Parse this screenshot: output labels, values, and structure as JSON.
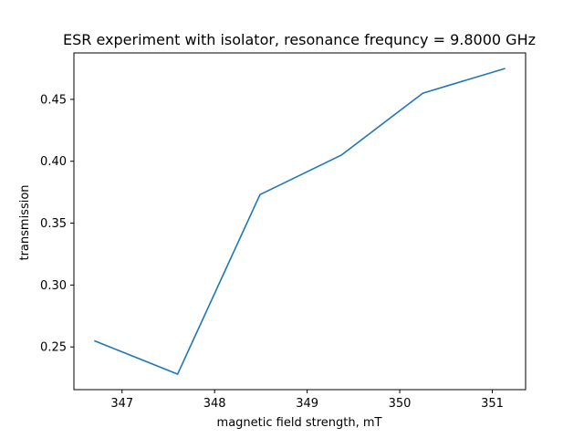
{
  "chart_data": {
    "type": "line",
    "title": "ESR experiment with isolator, resonance frequncy = 9.8000 GHz",
    "xlabel": "magnetic field strength, mT",
    "ylabel": "transmission",
    "xlim": [
      346.48,
      351.36
    ],
    "ylim": [
      0.2155,
      0.4875
    ],
    "xticks": [
      347,
      348,
      349,
      350,
      351
    ],
    "yticks": [
      0.25,
      0.3,
      0.35,
      0.4,
      0.45
    ],
    "xtick_labels": [
      "347",
      "348",
      "349",
      "350",
      "351"
    ],
    "ytick_labels": [
      "0.25",
      "0.30",
      "0.35",
      "0.40",
      "0.45"
    ],
    "grid": false,
    "series": [
      {
        "color": "#1f77b4",
        "x": [
          346.7,
          347.6,
          348.49,
          349.37,
          350.25,
          351.14
        ],
        "y": [
          0.255,
          0.228,
          0.373,
          0.405,
          0.455,
          0.475
        ]
      }
    ]
  }
}
